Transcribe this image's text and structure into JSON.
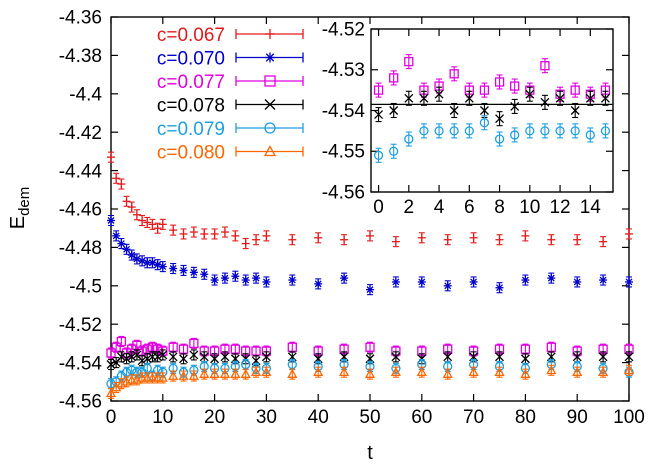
{
  "chart_data": [
    {
      "type": "scatter",
      "title": "",
      "xlabel": "t",
      "ylabel": "E_dem",
      "ylabel_main": "E",
      "ylabel_sub": "dem",
      "xlim": [
        0,
        100
      ],
      "ylim": [
        -4.56,
        -4.36
      ],
      "xticks": [
        "0",
        "10",
        "20",
        "30",
        "40",
        "50",
        "60",
        "70",
        "80",
        "90",
        "100"
      ],
      "yticks": [
        "-4.36",
        "-4.38",
        "-4.4",
        "-4.42",
        "-4.44",
        "-4.46",
        "-4.48",
        "-4.5",
        "-4.52",
        "-4.54",
        "-4.56"
      ],
      "error_bars": true,
      "legend_position": "top-left",
      "series": [
        {
          "name": "c=0.067",
          "color": "#e31a1c",
          "marker": "plus",
          "x": [
            0,
            1,
            2,
            3,
            4,
            5,
            6,
            7,
            8,
            9,
            10,
            12,
            14,
            16,
            18,
            20,
            22,
            24,
            26,
            28,
            30,
            35,
            40,
            45,
            50,
            55,
            60,
            65,
            70,
            75,
            80,
            85,
            90,
            95,
            100
          ],
          "values": [
            -4.433,
            -4.444,
            -4.447,
            -4.456,
            -4.459,
            -4.463,
            -4.466,
            -4.467,
            -4.468,
            -4.47,
            -4.468,
            -4.471,
            -4.473,
            -4.472,
            -4.473,
            -4.473,
            -4.472,
            -4.474,
            -4.478,
            -4.476,
            -4.474,
            -4.476,
            -4.475,
            -4.476,
            -4.474,
            -4.477,
            -4.475,
            -4.476,
            -4.475,
            -4.476,
            -4.474,
            -4.476,
            -4.476,
            -4.477,
            -4.473
          ]
        },
        {
          "name": "c=0.070",
          "color": "#0000cc",
          "marker": "star",
          "x": [
            0,
            1,
            2,
            3,
            4,
            5,
            6,
            7,
            8,
            9,
            10,
            12,
            14,
            16,
            18,
            20,
            22,
            24,
            26,
            28,
            30,
            35,
            40,
            45,
            50,
            55,
            60,
            65,
            70,
            75,
            80,
            85,
            90,
            95,
            100
          ],
          "values": [
            -4.466,
            -4.474,
            -4.478,
            -4.481,
            -4.484,
            -4.486,
            -4.487,
            -4.488,
            -4.488,
            -4.489,
            -4.49,
            -4.491,
            -4.492,
            -4.493,
            -4.494,
            -4.497,
            -4.496,
            -4.495,
            -4.497,
            -4.496,
            -4.498,
            -4.497,
            -4.499,
            -4.496,
            -4.502,
            -4.498,
            -4.498,
            -4.5,
            -4.498,
            -4.501,
            -4.497,
            -4.496,
            -4.498,
            -4.497,
            -4.498
          ]
        },
        {
          "name": "c=0.077",
          "color": "#e000e0",
          "marker": "square",
          "x": [
            0,
            1,
            2,
            3,
            4,
            5,
            6,
            7,
            8,
            9,
            10,
            12,
            14,
            16,
            18,
            20,
            22,
            24,
            26,
            28,
            30,
            35,
            40,
            45,
            50,
            55,
            60,
            65,
            70,
            75,
            80,
            85,
            90,
            95,
            100
          ],
          "values": [
            -4.535,
            -4.532,
            -4.529,
            -4.535,
            -4.533,
            -4.531,
            -4.534,
            -4.533,
            -4.532,
            -4.533,
            -4.534,
            -4.532,
            -4.533,
            -4.53,
            -4.534,
            -4.534,
            -4.533,
            -4.533,
            -4.534,
            -4.534,
            -4.534,
            -4.532,
            -4.534,
            -4.533,
            -4.532,
            -4.534,
            -4.534,
            -4.533,
            -4.534,
            -4.533,
            -4.533,
            -4.532,
            -4.534,
            -4.533,
            -4.533
          ]
        },
        {
          "name": "c=0.078",
          "color": "#000000",
          "marker": "cross",
          "x": [
            0,
            1,
            2,
            3,
            4,
            5,
            6,
            7,
            8,
            9,
            10,
            12,
            14,
            16,
            18,
            20,
            22,
            24,
            26,
            28,
            30,
            35,
            40,
            45,
            50,
            55,
            60,
            65,
            70,
            75,
            80,
            85,
            90,
            95,
            100
          ],
          "values": [
            -4.541,
            -4.54,
            -4.537,
            -4.538,
            -4.537,
            -4.536,
            -4.539,
            -4.538,
            -4.537,
            -4.537,
            -4.536,
            -4.537,
            -4.538,
            -4.536,
            -4.537,
            -4.538,
            -4.537,
            -4.538,
            -4.538,
            -4.539,
            -4.537,
            -4.537,
            -4.538,
            -4.537,
            -4.538,
            -4.537,
            -4.538,
            -4.537,
            -4.537,
            -4.537,
            -4.538,
            -4.537,
            -4.537,
            -4.537,
            -4.537
          ]
        },
        {
          "name": "c=0.079",
          "color": "#1f9fdf",
          "marker": "circle",
          "x": [
            0,
            1,
            2,
            3,
            4,
            5,
            6,
            7,
            8,
            9,
            10,
            12,
            14,
            16,
            18,
            20,
            22,
            24,
            26,
            28,
            30,
            35,
            40,
            45,
            50,
            55,
            60,
            65,
            70,
            75,
            80,
            85,
            90,
            95,
            100
          ],
          "values": [
            -4.551,
            -4.55,
            -4.547,
            -4.545,
            -4.544,
            -4.545,
            -4.545,
            -4.543,
            -4.547,
            -4.544,
            -4.545,
            -4.543,
            -4.545,
            -4.544,
            -4.542,
            -4.543,
            -4.543,
            -4.542,
            -4.541,
            -4.543,
            -4.543,
            -4.541,
            -4.542,
            -4.541,
            -4.542,
            -4.543,
            -4.541,
            -4.542,
            -4.541,
            -4.542,
            -4.543,
            -4.541,
            -4.542,
            -4.543,
            -4.545
          ]
        },
        {
          "name": "c=0.080",
          "color": "#ff6600",
          "marker": "triangle",
          "x": [
            0,
            1,
            2,
            3,
            4,
            5,
            6,
            7,
            8,
            9,
            10,
            12,
            14,
            16,
            18,
            20,
            22,
            24,
            26,
            28,
            30,
            35,
            40,
            45,
            50,
            55,
            60,
            65,
            70,
            75,
            80,
            85,
            90,
            95,
            100
          ],
          "values": [
            -4.556,
            -4.553,
            -4.551,
            -4.55,
            -4.549,
            -4.549,
            -4.548,
            -4.548,
            -4.548,
            -4.548,
            -4.548,
            -4.547,
            -4.547,
            -4.547,
            -4.546,
            -4.546,
            -4.546,
            -4.546,
            -4.546,
            -4.545,
            -4.545,
            -4.546,
            -4.545,
            -4.545,
            -4.546,
            -4.545,
            -4.545,
            -4.546,
            -4.545,
            -4.545,
            -4.546,
            -4.544,
            -4.545,
            -4.545,
            -4.544
          ]
        }
      ]
    },
    {
      "type": "scatter",
      "title": "",
      "xlabel": "",
      "ylabel": "",
      "xlim": [
        -0.5,
        15.5
      ],
      "ylim": [
        -4.56,
        -4.52
      ],
      "xticks": [
        "0",
        "2",
        "4",
        "6",
        "8",
        "10",
        "12",
        "14"
      ],
      "yticks": [
        "-4.52",
        "-4.53",
        "-4.54",
        "-4.55",
        "-4.56"
      ],
      "error_bars": true,
      "hline": -4.5385,
      "series": [
        {
          "name": "c=0.077",
          "color": "#e000e0",
          "marker": "square",
          "x": [
            0,
            1,
            2,
            3,
            4,
            5,
            6,
            7,
            8,
            9,
            10,
            11,
            12,
            13,
            14,
            15
          ],
          "values": [
            -4.535,
            -4.532,
            -4.528,
            -4.535,
            -4.534,
            -4.531,
            -4.535,
            -4.535,
            -4.533,
            -4.534,
            -4.535,
            -4.529,
            -4.536,
            -4.535,
            -4.536,
            -4.535
          ]
        },
        {
          "name": "c=0.078",
          "color": "#000000",
          "marker": "cross",
          "x": [
            0,
            1,
            2,
            3,
            4,
            5,
            6,
            7,
            8,
            9,
            10,
            11,
            12,
            13,
            14,
            15
          ],
          "values": [
            -4.541,
            -4.54,
            -4.537,
            -4.537,
            -4.536,
            -4.54,
            -4.537,
            -4.54,
            -4.542,
            -4.539,
            -4.536,
            -4.538,
            -4.537,
            -4.54,
            -4.537,
            -4.537
          ]
        },
        {
          "name": "c=0.079",
          "color": "#1f9fdf",
          "marker": "circle",
          "x": [
            0,
            1,
            2,
            3,
            4,
            5,
            6,
            7,
            8,
            9,
            10,
            11,
            12,
            13,
            14,
            15
          ],
          "values": [
            -4.551,
            -4.55,
            -4.547,
            -4.545,
            -4.545,
            -4.545,
            -4.545,
            -4.543,
            -4.547,
            -4.546,
            -4.545,
            -4.545,
            -4.545,
            -4.545,
            -4.546,
            -4.545
          ]
        }
      ]
    }
  ]
}
